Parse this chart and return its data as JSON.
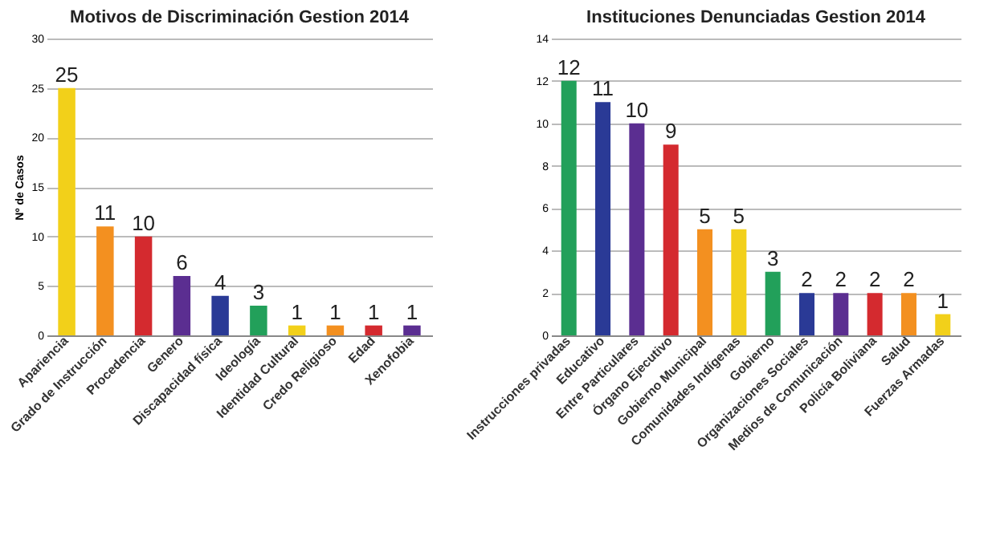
{
  "chart_data": [
    {
      "type": "bar",
      "title": "Motivos de Discriminación  Gestion 2014",
      "ylabel": "Nº de Casos",
      "categories": [
        "Apariencia",
        "Grado de Instrucción",
        "Procedencia",
        "Genero",
        "Discapacidad física",
        "Ideología",
        "Identidad Cultural",
        "Credo Religioso",
        "Edad",
        "Xenofobia"
      ],
      "values": [
        25,
        11,
        10,
        6,
        4,
        3,
        1,
        1,
        1,
        1
      ],
      "colors": [
        "#f2d01a",
        "#f39020",
        "#d42a2f",
        "#5b2e91",
        "#2a3a96",
        "#22a05a",
        "#f2d01a",
        "#f39020",
        "#d42a2f",
        "#5b2e91"
      ],
      "ylim": [
        0,
        30
      ],
      "yticks": [
        0,
        5,
        10,
        15,
        20,
        25,
        30
      ],
      "grid": "y",
      "data_labels": true
    },
    {
      "type": "bar",
      "title": "Instituciones Denunciadas Gestion 2014",
      "categories": [
        "Instrucciones privadas",
        "Educativo",
        "Entre Particulares",
        "Órgano Ejecutivo",
        "Gobierno Municipal",
        "Comunidades Indígenas",
        "Gobierno",
        "Organizaciones Sociales",
        "Medios de Comunicación",
        "Policía Boliviana",
        "Salud",
        "Fuerzas Armadas"
      ],
      "values": [
        12,
        11,
        10,
        9,
        5,
        5,
        3,
        2,
        2,
        2,
        2,
        1
      ],
      "colors": [
        "#22a05a",
        "#2a3a96",
        "#5b2e91",
        "#d42a2f",
        "#f39020",
        "#f2d01a",
        "#22a05a",
        "#2a3a96",
        "#5b2e91",
        "#d42a2f",
        "#f39020",
        "#f2d01a"
      ],
      "ylim": [
        0,
        14
      ],
      "yticks": [
        0,
        2,
        4,
        6,
        8,
        10,
        12,
        14
      ],
      "grid": "y",
      "data_labels": true
    }
  ]
}
